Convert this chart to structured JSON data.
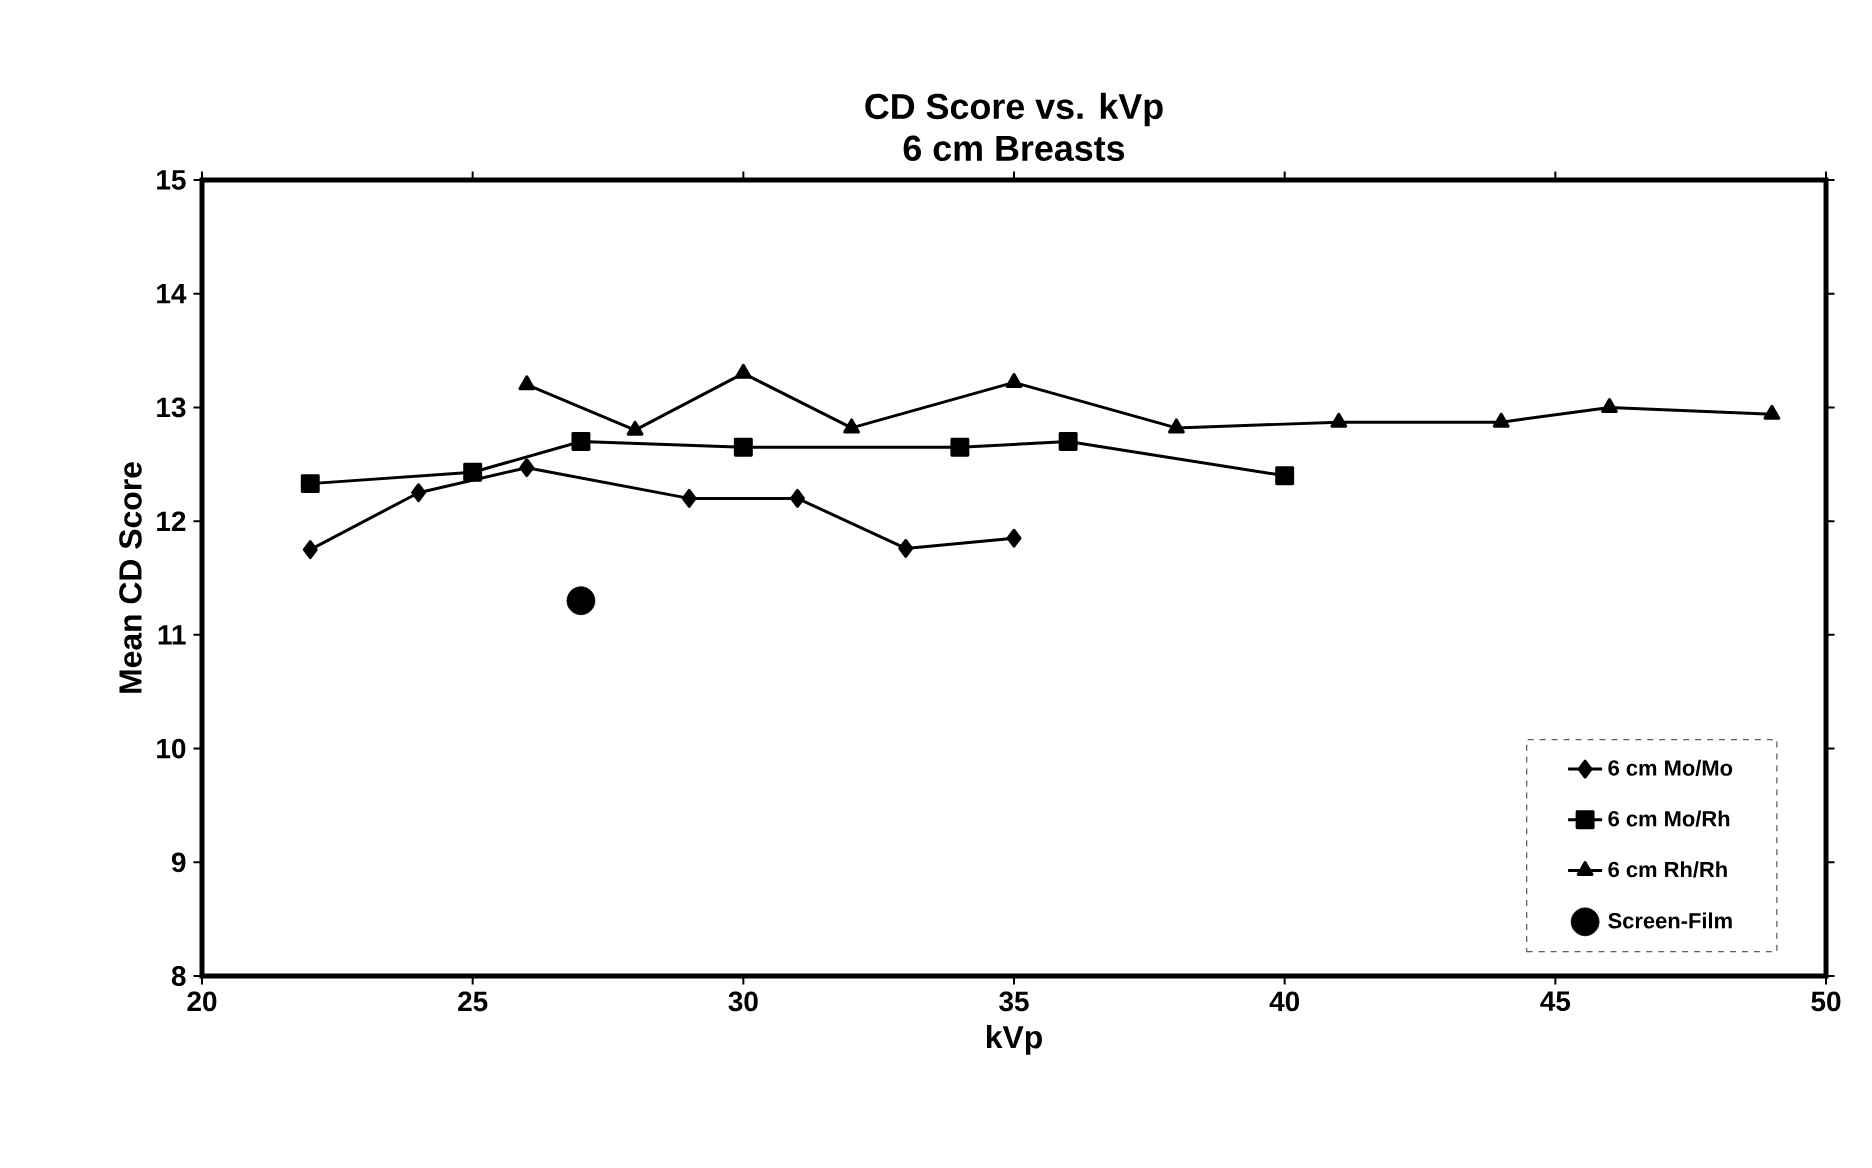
{
  "chart_data": {
    "type": "line",
    "title": "CD Score vs. kVp",
    "subtitle": "6 cm Breasts",
    "xlabel": "kVp",
    "ylabel": "Mean CD Score",
    "xlim": [
      20,
      50
    ],
    "xticks": [
      20,
      25,
      30,
      35,
      40,
      45,
      50
    ],
    "ylim": [
      8,
      15
    ],
    "yticks": [
      8,
      9,
      10,
      11,
      12,
      13,
      14,
      15
    ],
    "grid": false,
    "legend": "bottom right",
    "line_style": "solid",
    "series": [
      {
        "name": "6 cm Mo/Mo",
        "color": "#000000",
        "marker": "diamond",
        "x": [
          22,
          24,
          26,
          29,
          31,
          33,
          35
        ],
        "values": [
          11.75,
          12.25,
          12.47,
          12.2,
          12.2,
          11.76,
          11.85
        ]
      },
      {
        "name": "6 cm Mo/Rh",
        "color": "#000000",
        "marker": "square",
        "x": [
          22,
          25,
          27,
          30,
          34,
          36,
          40
        ],
        "values": [
          12.33,
          12.43,
          12.7,
          12.65,
          12.65,
          12.7,
          12.4
        ]
      },
      {
        "name": "6 cm Rh/Rh",
        "color": "#000000",
        "marker": "triangle",
        "x": [
          26,
          28,
          30,
          32,
          35,
          38,
          41,
          44,
          46,
          49
        ],
        "values": [
          13.2,
          12.8,
          13.3,
          12.82,
          13.22,
          12.82,
          12.87,
          12.87,
          13.0,
          12.94
        ]
      },
      {
        "name": "Screen-Film",
        "type": "scatter",
        "color": "#000000",
        "marker": "circle",
        "x": [
          27
        ],
        "values": [
          11.3
        ]
      }
    ]
  }
}
